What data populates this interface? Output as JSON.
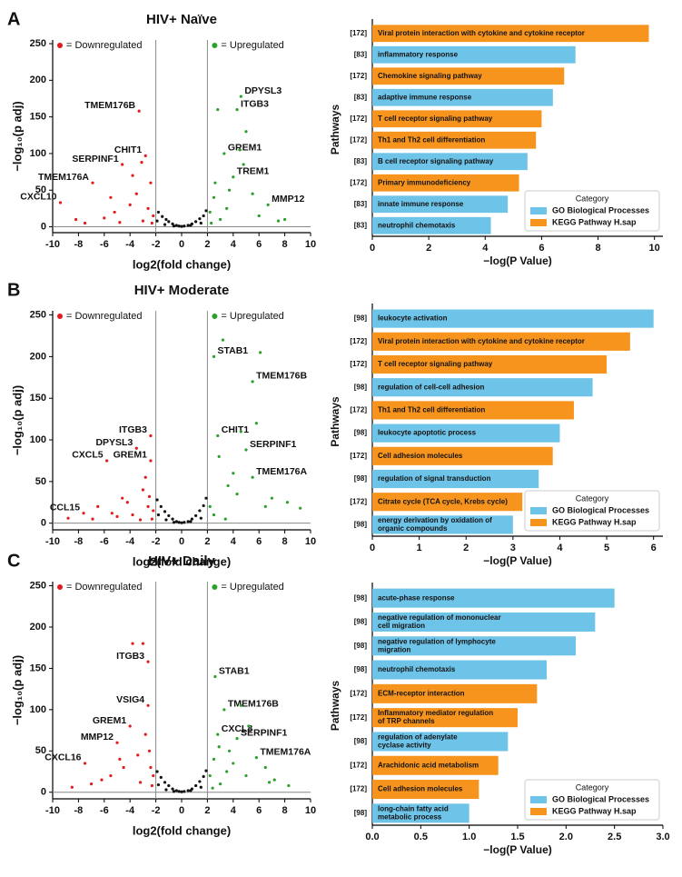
{
  "chart_data": [
    {
      "type": "scatter",
      "panel": "A",
      "title": "HIV+ Naïve",
      "xlabel": "log2(fold change)",
      "ylabel": "−log₁₀(p adj)",
      "xlim": [
        -10,
        10
      ],
      "ylim": [
        -8,
        255
      ],
      "xticks": [
        -10,
        -8,
        -6,
        -4,
        -2,
        0,
        2,
        4,
        6,
        8,
        10
      ],
      "yticks": [
        0,
        50,
        100,
        150,
        200,
        250
      ],
      "vlines": [
        -2,
        2
      ],
      "hlines": [
        0
      ],
      "series": [
        {
          "name": "= Downregulated",
          "color": "#e41a1c",
          "x": [
            -3.3,
            -2.8,
            -4.6,
            -6.9,
            -9.4,
            -3.5,
            -4.0,
            -5.2,
            -2.4,
            -2.2,
            -3.0,
            -6.0,
            -7.5,
            -4.8,
            -2.6,
            -3.8,
            -5.5,
            -2.3,
            -8.2,
            -3.1
          ],
          "y": [
            158,
            97,
            85,
            60,
            33,
            45,
            30,
            20,
            60,
            15,
            8,
            12,
            5,
            6,
            25,
            70,
            40,
            5,
            10,
            88
          ],
          "labels": [
            "TMEM176B",
            "CHIT1",
            "SERPINF1",
            "TMEM176A",
            "CXCL10",
            null,
            null,
            null,
            null,
            null,
            null,
            null,
            null,
            null,
            null,
            null,
            null,
            null,
            null,
            null
          ]
        },
        {
          "name": "= Upregulated",
          "color": "#2ca02c",
          "x": [
            4.6,
            4.3,
            3.3,
            4.0,
            6.7,
            2.2,
            2.5,
            3.0,
            2.8,
            5.0,
            3.7,
            4.5,
            6.0,
            2.3,
            7.5,
            5.5,
            3.5,
            2.6,
            8.0,
            4.8
          ],
          "y": [
            178,
            160,
            100,
            68,
            30,
            20,
            40,
            10,
            160,
            130,
            50,
            105,
            15,
            5,
            8,
            45,
            25,
            60,
            10,
            85
          ],
          "labels": [
            "DPYSL3",
            "ITGB3",
            "GREM1",
            "TREM1",
            "MMP12",
            null,
            null,
            null,
            null,
            null,
            null,
            null,
            null,
            null,
            null,
            null,
            null,
            null,
            null,
            null
          ]
        },
        {
          "color": "#111111",
          "x": [
            -1.8,
            -1.5,
            -1.2,
            -1.0,
            -0.7,
            -0.4,
            -0.2,
            0,
            0.2,
            0.5,
            0.8,
            1.1,
            1.4,
            1.7,
            1.9,
            -1.9,
            -1.3,
            -0.6,
            0.7,
            1.5
          ],
          "y": [
            20,
            14,
            10,
            7,
            4,
            2,
            1,
            0.5,
            1,
            2,
            4,
            7,
            11,
            15,
            22,
            8,
            3,
            1,
            2,
            5
          ]
        }
      ]
    },
    {
      "type": "barh",
      "xlabel": "−log(P Value)",
      "ylabel": "Pathways",
      "legend_title": "Category",
      "legend": "lower right",
      "xlim": [
        0,
        10.3
      ],
      "xticks": [
        0,
        2,
        4,
        6,
        8,
        10
      ],
      "categories": [
        "Viral protein interaction with cytokine and cytokine receptor",
        "inflammatory response",
        "Chemokine signaling pathway",
        "adaptive immune response",
        "T cell receptor signaling pathway",
        "Th1 and Th2 cell differentiation",
        "B cell receptor signaling pathway",
        "Primary immunodeficiency",
        "innate immune response",
        "neutrophil chemotaxis"
      ],
      "set_labels": [
        "[172]",
        "[83]",
        "[172]",
        "[83]",
        "[172]",
        "[172]",
        "[83]",
        "[172]",
        "[83]",
        "[83]"
      ],
      "series": [
        {
          "name": "GO Biological Processes",
          "color": "#6ec3e8",
          "values": [
            null,
            7.2,
            null,
            6.4,
            null,
            null,
            5.5,
            null,
            4.8,
            4.2
          ]
        },
        {
          "name": "KEGG Pathway H.sap",
          "color": "#f7941d",
          "values": [
            9.8,
            null,
            6.8,
            null,
            6.0,
            5.8,
            null,
            5.2,
            null,
            null
          ]
        }
      ]
    },
    {
      "type": "scatter",
      "panel": "B",
      "title": "HIV+ Moderate",
      "xlabel": "log2(fold change)",
      "ylabel": "−log₁₀(p adj)",
      "xlim": [
        -10,
        10
      ],
      "ylim": [
        -8,
        255
      ],
      "xticks": [
        -10,
        -8,
        -6,
        -4,
        -2,
        0,
        2,
        4,
        6,
        8,
        10
      ],
      "yticks": [
        0,
        50,
        100,
        150,
        200,
        250
      ],
      "vlines": [
        -2,
        2
      ],
      "hlines": [
        0
      ],
      "series": [
        {
          "name": "= Downregulated",
          "color": "#e41a1c",
          "x": [
            -2.4,
            -3.5,
            -5.8,
            -2.4,
            -7.6,
            -3.0,
            -4.2,
            -2.2,
            -5.0,
            -6.5,
            -2.8,
            -3.8,
            -2.3,
            -4.6,
            -8.8,
            -2.6,
            -3.2,
            -5.4,
            -2.5,
            -6.9
          ],
          "y": [
            105,
            90,
            75,
            75,
            12,
            40,
            25,
            15,
            8,
            20,
            55,
            10,
            5,
            30,
            6,
            20,
            4,
            12,
            32,
            5
          ],
          "labels": [
            "ITGB3",
            "DPYSL3",
            "CXCL5",
            "GREM1",
            "CCL15",
            null,
            null,
            null,
            null,
            null,
            null,
            null,
            null,
            null,
            null,
            null,
            null,
            null,
            null,
            null
          ]
        },
        {
          "name": "= Upregulated",
          "color": "#2ca02c",
          "x": [
            2.5,
            5.5,
            2.8,
            5.0,
            5.5,
            6.1,
            3.2,
            2.2,
            4.0,
            7.0,
            3.6,
            2.5,
            6.5,
            4.6,
            8.2,
            2.9,
            5.8,
            9.2,
            3.4,
            4.3
          ],
          "y": [
            200,
            170,
            105,
            88,
            55,
            205,
            220,
            20,
            60,
            30,
            45,
            10,
            20,
            110,
            25,
            80,
            120,
            18,
            5,
            35
          ],
          "labels": [
            "STAB1",
            "TMEM176B",
            "CHIT1",
            "SERPINF1",
            "TMEM176A",
            null,
            null,
            null,
            null,
            null,
            null,
            null,
            null,
            null,
            null,
            null,
            null,
            null,
            null,
            null
          ]
        },
        {
          "color": "#111111",
          "x": [
            -1.9,
            -1.6,
            -1.3,
            -1.0,
            -0.7,
            -0.4,
            -0.2,
            0,
            0.2,
            0.5,
            0.8,
            1.1,
            1.4,
            1.7,
            1.9,
            -1.8,
            -1.2,
            -0.6,
            0.7,
            1.5
          ],
          "y": [
            28,
            20,
            14,
            9,
            5,
            2,
            1,
            0.5,
            1,
            2,
            5,
            9,
            15,
            21,
            30,
            10,
            4,
            1,
            2,
            6
          ]
        }
      ]
    },
    {
      "type": "barh",
      "xlabel": "−log(P Value)",
      "ylabel": "Pathways",
      "legend_title": "Category",
      "legend": "lower right",
      "xlim": [
        0,
        6.2
      ],
      "xticks": [
        0,
        1,
        2,
        3,
        4,
        5,
        6
      ],
      "categories": [
        "leukocyte activation",
        "Viral protein interaction with cytokine and cytokine receptor",
        "T cell receptor signaling pathway",
        "regulation of cell-cell adhesion",
        "Th1 and Th2 cell differentiation",
        "leukocyte apoptotic process",
        "Cell adhesion molecules",
        "regulation of signal transduction",
        "Citrate cycle (TCA cycle, Krebs cycle)",
        "energy derivation by oxidation of\norganic compounds"
      ],
      "set_labels": [
        "[98]",
        "[172]",
        "[172]",
        "[98]",
        "[172]",
        "[98]",
        "[172]",
        "[98]",
        "[172]",
        "[98]"
      ],
      "series": [
        {
          "name": "GO Biological Processes",
          "color": "#6ec3e8",
          "values": [
            6.0,
            null,
            null,
            4.7,
            null,
            4.0,
            null,
            3.55,
            null,
            3.0
          ]
        },
        {
          "name": "KEGG Pathway H.sap",
          "color": "#f7941d",
          "values": [
            null,
            5.5,
            5.0,
            null,
            4.3,
            null,
            3.85,
            null,
            3.2,
            null
          ]
        }
      ]
    },
    {
      "type": "scatter",
      "panel": "C",
      "title": "HIV+ Daily",
      "xlabel": "log2(fold change)",
      "ylabel": "−log₁₀(p adj)",
      "xlim": [
        -10,
        10
      ],
      "ylim": [
        -8,
        255
      ],
      "xticks": [
        -10,
        -8,
        -6,
        -4,
        -2,
        0,
        2,
        4,
        6,
        8,
        10
      ],
      "yticks": [
        0,
        50,
        100,
        150,
        200,
        250
      ],
      "vlines": [
        -2,
        2
      ],
      "hlines": [
        0
      ],
      "series": [
        {
          "name": "= Downregulated",
          "color": "#e41a1c",
          "x": [
            -2.6,
            -2.6,
            -4.0,
            -5.0,
            -7.5,
            -3.8,
            -3.0,
            -2.2,
            -4.5,
            -6.2,
            -2.8,
            -3.4,
            -2.3,
            -5.5,
            -8.5,
            -2.5,
            -3.2,
            -4.8,
            -2.4,
            -7.0
          ],
          "y": [
            158,
            105,
            80,
            60,
            35,
            180,
            180,
            20,
            30,
            15,
            70,
            45,
            8,
            20,
            6,
            50,
            12,
            40,
            30,
            10
          ],
          "labels": [
            "ITGB3",
            "VSIG4",
            "GREM1",
            "MMP12",
            "CXCL16",
            null,
            null,
            null,
            null,
            null,
            null,
            null,
            null,
            null,
            null,
            null,
            null,
            null,
            null,
            null
          ]
        },
        {
          "name": "= Upregulated",
          "color": "#2ca02c",
          "x": [
            2.6,
            3.3,
            2.8,
            4.3,
            5.8,
            2.2,
            2.5,
            3.0,
            4.6,
            5.2,
            3.7,
            6.5,
            2.4,
            7.2,
            3.5,
            4.0,
            8.3,
            2.9,
            5.0,
            6.8
          ],
          "y": [
            140,
            100,
            70,
            65,
            42,
            20,
            40,
            10,
            105,
            80,
            50,
            30,
            5,
            15,
            25,
            35,
            8,
            55,
            20,
            12
          ],
          "labels": [
            "STAB1",
            "TMEM176B",
            "CXCL8",
            "SERPINF1",
            "TMEM176A",
            null,
            null,
            null,
            null,
            null,
            null,
            null,
            null,
            null,
            null,
            null,
            null,
            null,
            null,
            null
          ]
        },
        {
          "color": "#111111",
          "x": [
            -1.9,
            -1.6,
            -1.3,
            -1.0,
            -0.7,
            -0.4,
            -0.2,
            0,
            0.2,
            0.5,
            0.8,
            1.1,
            1.4,
            1.7,
            1.9,
            -1.8,
            -1.2,
            -0.6,
            0.7,
            1.5
          ],
          "y": [
            25,
            18,
            12,
            8,
            4,
            2,
            1,
            0.5,
            1,
            2,
            4,
            8,
            13,
            19,
            26,
            9,
            3,
            1,
            2,
            6
          ]
        }
      ]
    },
    {
      "type": "barh",
      "xlabel": "−log(P Value)",
      "ylabel": "Pathways",
      "legend_title": "Category",
      "legend": "lower right",
      "xlim": [
        0,
        3
      ],
      "xticks": [
        {
          "value": 0,
          "label": "0.0"
        },
        0.5,
        {
          "value": 1,
          "label": "1.0"
        },
        1.5,
        {
          "value": 2,
          "label": "2.0"
        },
        2.5,
        {
          "value": 3,
          "label": "3.0"
        }
      ],
      "categories": [
        "acute-phase response",
        "negative regulation of mononuclear\ncell migration",
        "negative regulation of lymphocyte\nmigration",
        "neutrophil chemotaxis",
        "ECM-receptor interaction",
        "Inflammatory mediator regulation\nof TRP channels",
        "regulation of adenylate\ncyclase activity",
        "Arachidonic acid metabolism",
        "Cell adhesion molecules",
        "long-chain fatty acid\nmetabolic process"
      ],
      "set_labels": [
        "[98]",
        "[98]",
        "[98]",
        "[98]",
        "[172]",
        "[172]",
        "[98]",
        "[172]",
        "[172]",
        "[98]"
      ],
      "series": [
        {
          "name": "GO Biological Processes",
          "color": "#6ec3e8",
          "values": [
            2.5,
            2.3,
            2.1,
            1.8,
            null,
            null,
            1.4,
            null,
            null,
            1.0
          ]
        },
        {
          "name": "KEGG Pathway H.sap",
          "color": "#f7941d",
          "values": [
            null,
            null,
            null,
            null,
            1.7,
            1.5,
            null,
            1.3,
            1.1,
            null
          ]
        }
      ]
    }
  ]
}
